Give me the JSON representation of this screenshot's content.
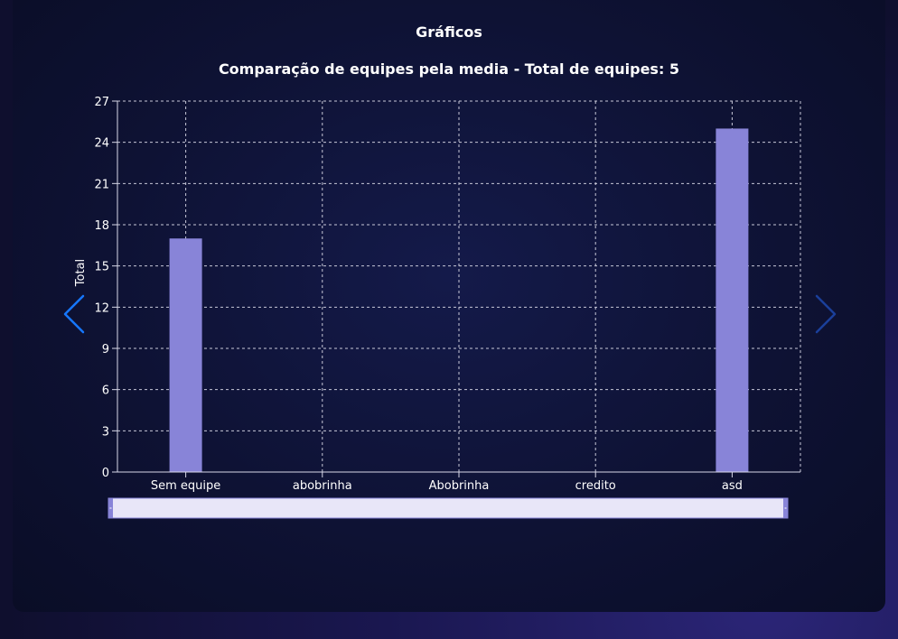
{
  "page": {
    "section_title": "Gráficos"
  },
  "navigation": {
    "prev_icon": "chevron-left-icon",
    "next_icon": "chevron-right-icon"
  },
  "colors": {
    "bar": "#8884d8",
    "grid": "#c8c8d8",
    "prev_arrow": "#1677ff",
    "next_arrow": "#1b3f9a",
    "brush_fill": "#e8e6f8",
    "brush_stroke": "#8884d8"
  },
  "chart_data": {
    "type": "bar",
    "title": "Comparação de equipes pela media - Total de equipes: 5",
    "xlabel": "",
    "ylabel": "Total",
    "categories": [
      "Sem equipe",
      "abobrinha",
      "Abobrinha",
      "credito",
      "asd"
    ],
    "series": [
      {
        "values": [
          17,
          0,
          0,
          0,
          25
        ]
      }
    ],
    "ylim": [
      0,
      27
    ],
    "yticks": [
      0,
      3,
      6,
      9,
      12,
      15,
      18,
      21,
      24,
      27
    ],
    "grid": true,
    "brush": true
  }
}
